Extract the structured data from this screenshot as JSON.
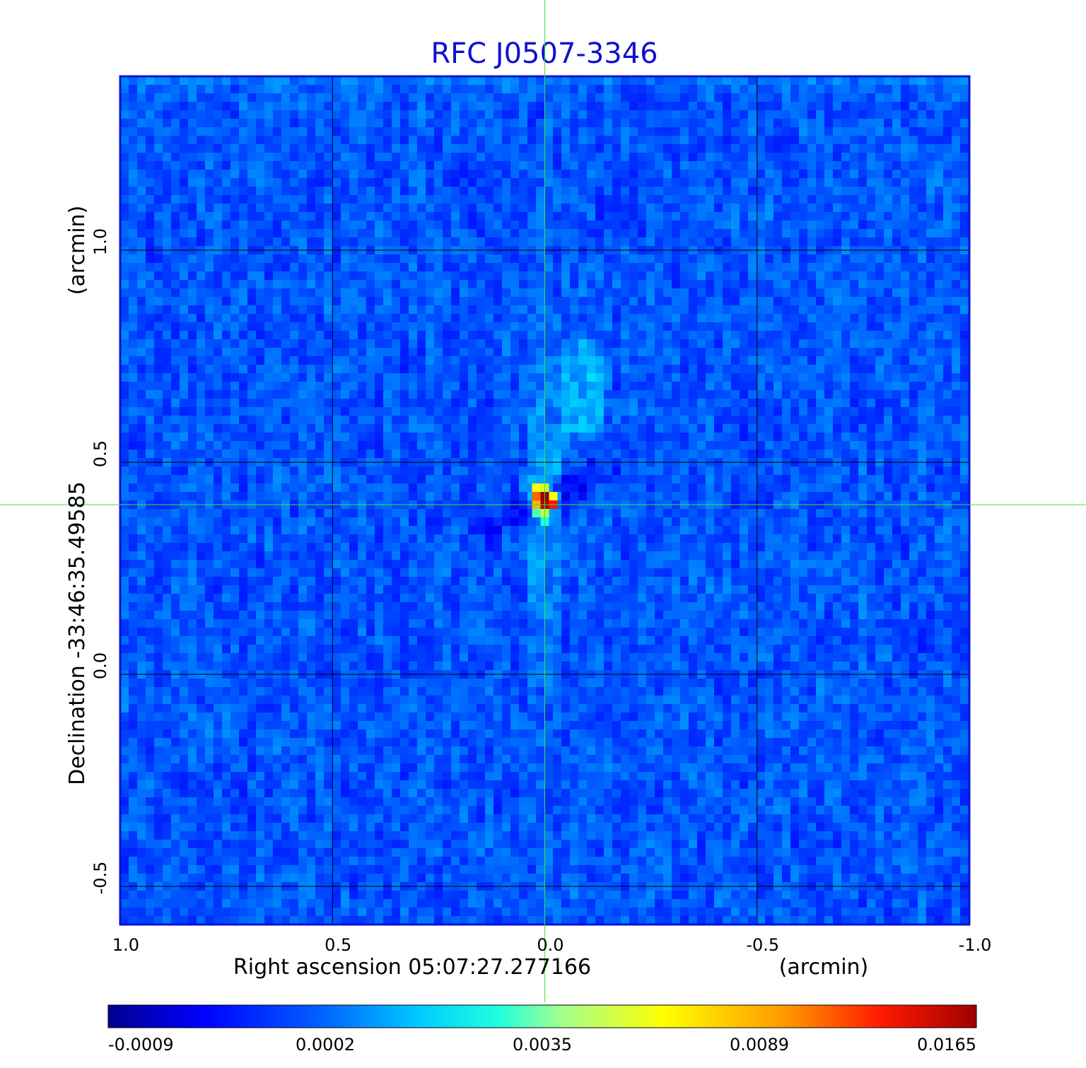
{
  "chart_data": {
    "type": "heatmap",
    "title": "RFC J0507-3346",
    "xlabel": "Right ascension  05:07:27.277166",
    "xunit": "(arcmin)",
    "ylabel": "Declination  -33:46:35.49585",
    "yunit": "(arcmin)",
    "xlim": [
      1.0,
      -1.0
    ],
    "ylim": [
      -0.59,
      1.41
    ],
    "x_ticks": [
      1.0,
      0.5,
      0.0,
      -0.5,
      -1.0
    ],
    "x_tick_labels": [
      "1.0",
      "0.5",
      "0.0",
      "-0.5",
      "-1.0"
    ],
    "y_ticks": [
      -0.5,
      0.0,
      0.5,
      1.0
    ],
    "y_tick_labels": [
      "-0.5",
      "0.0",
      "0.5",
      "1.0"
    ],
    "grid": true,
    "colormap": "jet",
    "colorbar": {
      "ticks": [
        -0.0009,
        0.0002,
        0.0035,
        0.0089,
        0.0165
      ],
      "tick_labels": [
        "-0.0009",
        "0.0002",
        "0.0035",
        "0.0089",
        "0.0165"
      ]
    },
    "crosshair": {
      "x": 0.0,
      "y": 0.4,
      "color": "#40e040"
    },
    "peak": {
      "x": 0.0,
      "y": 0.42,
      "value": 0.0165
    }
  }
}
